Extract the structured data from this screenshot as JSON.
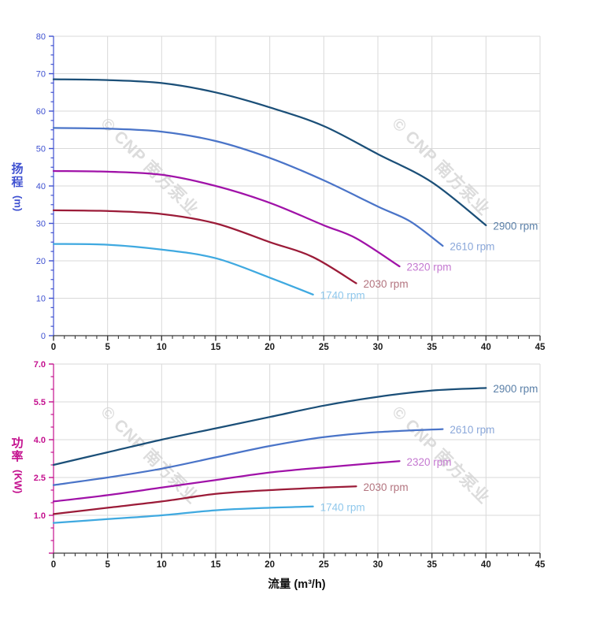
{
  "figure": {
    "xlabel": "流量 (m³/h)",
    "watermark": {
      "text": "© CNP 南方泵业",
      "color": "#d4d4d4"
    },
    "grid_color": "#d9d9d9",
    "x_axis_color": "#3a3a3a",
    "x_tick_label_color": "#1a1a1a"
  },
  "chart_data": [
    {
      "type": "line",
      "title": "",
      "ylabel": "扬程",
      "ylabel_unit": "(m)",
      "xlabel": "流量 (m³/h)",
      "xlim": [
        0,
        45
      ],
      "ylim": [
        0,
        80
      ],
      "x_major_ticks": [
        0,
        5,
        10,
        15,
        20,
        25,
        30,
        35,
        40,
        45
      ],
      "x_minor_step": 1,
      "y_major_values": [
        0,
        10,
        20,
        30,
        40,
        50,
        60,
        70,
        80
      ],
      "y_major_labels": [
        "0",
        "10",
        "20",
        "30",
        "40",
        "50",
        "60",
        "70",
        "80"
      ],
      "y_minor_step": 2.5,
      "axis_color": "#3f51d1",
      "grid": true,
      "legend_position": "curve-ends",
      "series": [
        {
          "name": "2900 rpm",
          "color": "#1b4f78",
          "label_color": "#5b80a8",
          "points": [
            [
              0,
              68.5
            ],
            [
              5,
              68.3
            ],
            [
              10,
              67.5
            ],
            [
              15,
              65
            ],
            [
              20,
              61
            ],
            [
              25,
              56
            ],
            [
              30,
              48.5
            ],
            [
              35,
              41
            ],
            [
              40,
              29.5
            ]
          ]
        },
        {
          "name": "2610 rpm",
          "color": "#4a74c8",
          "label_color": "#8ba8da",
          "points": [
            [
              0,
              55.5
            ],
            [
              5,
              55.3
            ],
            [
              10,
              54.5
            ],
            [
              15,
              52
            ],
            [
              20,
              47.5
            ],
            [
              25,
              41.5
            ],
            [
              30,
              34.5
            ],
            [
              33,
              30.5
            ],
            [
              36,
              24
            ]
          ]
        },
        {
          "name": "2320 rpm",
          "color": "#a012a8",
          "label_color": "#c478d0",
          "points": [
            [
              0,
              44
            ],
            [
              5,
              43.8
            ],
            [
              10,
              43
            ],
            [
              15,
              40
            ],
            [
              20,
              35.5
            ],
            [
              25,
              29.5
            ],
            [
              28,
              26
            ],
            [
              32,
              18.5
            ]
          ]
        },
        {
          "name": "2030 rpm",
          "color": "#9b1b38",
          "label_color": "#b3747f",
          "points": [
            [
              0,
              33.5
            ],
            [
              5,
              33.3
            ],
            [
              10,
              32.5
            ],
            [
              15,
              30
            ],
            [
              20,
              25
            ],
            [
              24,
              21
            ],
            [
              28,
              14
            ]
          ]
        },
        {
          "name": "1740 rpm",
          "color": "#3fa9e0",
          "label_color": "#90c8ec",
          "points": [
            [
              0,
              24.5
            ],
            [
              5,
              24.3
            ],
            [
              10,
              23
            ],
            [
              15,
              20.7
            ],
            [
              20,
              15.5
            ],
            [
              24,
              11
            ]
          ]
        }
      ]
    },
    {
      "type": "line",
      "title": "",
      "ylabel": "功率",
      "ylabel_unit": "(KW)",
      "xlabel": "流量 (m³/h)",
      "xlim": [
        0,
        45
      ],
      "ylim": [
        -0.5,
        7.0
      ],
      "x_major_ticks": [
        0,
        5,
        10,
        15,
        20,
        25,
        30,
        35,
        40,
        45
      ],
      "x_minor_step": 1,
      "y_major_values": [
        -0.5,
        1.0,
        2.5,
        4.0,
        5.5,
        7.0
      ],
      "y_major_labels": [
        "",
        "1.0",
        "2.5",
        "4.0",
        "5.5",
        "7.0"
      ],
      "y_minor_step": 0.5,
      "axis_color": "#c4108e",
      "grid": true,
      "legend_position": "curve-ends",
      "series": [
        {
          "name": "2900 rpm",
          "color": "#1b4f78",
          "label_color": "#5b80a8",
          "points": [
            [
              0,
              3.0
            ],
            [
              5,
              3.5
            ],
            [
              10,
              4.0
            ],
            [
              15,
              4.45
            ],
            [
              20,
              4.9
            ],
            [
              25,
              5.35
            ],
            [
              30,
              5.7
            ],
            [
              35,
              5.95
            ],
            [
              40,
              6.05
            ]
          ]
        },
        {
          "name": "2610 rpm",
          "color": "#4a74c8",
          "label_color": "#8ba8da",
          "points": [
            [
              0,
              2.2
            ],
            [
              5,
              2.5
            ],
            [
              10,
              2.85
            ],
            [
              15,
              3.3
            ],
            [
              20,
              3.75
            ],
            [
              25,
              4.1
            ],
            [
              30,
              4.3
            ],
            [
              36,
              4.42
            ]
          ]
        },
        {
          "name": "2320 rpm",
          "color": "#a012a8",
          "label_color": "#c478d0",
          "points": [
            [
              0,
              1.55
            ],
            [
              5,
              1.8
            ],
            [
              10,
              2.1
            ],
            [
              15,
              2.4
            ],
            [
              20,
              2.7
            ],
            [
              25,
              2.9
            ],
            [
              30,
              3.08
            ],
            [
              32,
              3.15
            ]
          ]
        },
        {
          "name": "2030 rpm",
          "color": "#9b1b38",
          "label_color": "#b3747f",
          "points": [
            [
              0,
              1.05
            ],
            [
              5,
              1.3
            ],
            [
              10,
              1.55
            ],
            [
              15,
              1.85
            ],
            [
              20,
              2.0
            ],
            [
              25,
              2.1
            ],
            [
              28,
              2.15
            ]
          ]
        },
        {
          "name": "1740 rpm",
          "color": "#3fa9e0",
          "label_color": "#90c8ec",
          "points": [
            [
              0,
              0.7
            ],
            [
              5,
              0.85
            ],
            [
              10,
              1.0
            ],
            [
              15,
              1.2
            ],
            [
              20,
              1.3
            ],
            [
              24,
              1.35
            ]
          ]
        }
      ]
    }
  ]
}
